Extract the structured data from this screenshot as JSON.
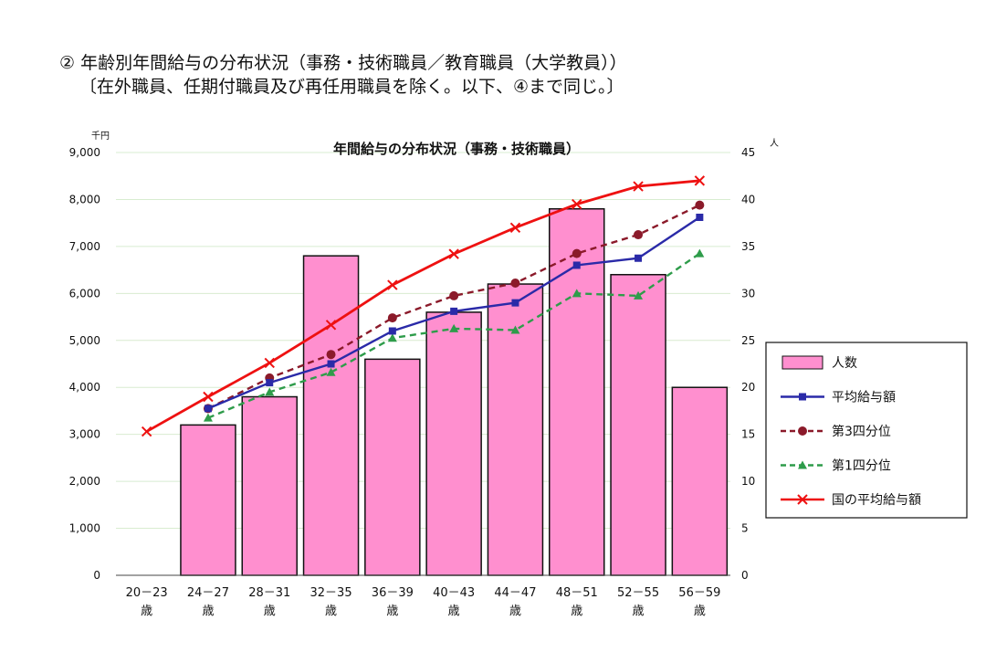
{
  "heading": {
    "line1": "② 年齢別年間給与の分布状況（事務・技術職員／教育職員（大学教員））",
    "line2": "〔在外職員、任期付職員及び再任用職員を除く。以下、④まで同じ。〕"
  },
  "chart_data": {
    "type": "bar",
    "title": "年間給与の分布状況（事務・技術職員）",
    "left_unit": "千円",
    "right_unit": "人",
    "categories": [
      "20－23",
      "24－27",
      "28－31",
      "32－35",
      "36－39",
      "40－43",
      "44－47",
      "48－51",
      "52－55",
      "56－59"
    ],
    "category_suffix": "歳",
    "y_left": {
      "min": 0,
      "max": 9000,
      "step": 1000,
      "ticks": [
        "0",
        "1,000",
        "2,000",
        "3,000",
        "4,000",
        "5,000",
        "6,000",
        "7,000",
        "8,000",
        "9,000"
      ]
    },
    "y_right": {
      "min": 0,
      "max": 45,
      "step": 5,
      "ticks": [
        "0",
        "5",
        "10",
        "15",
        "20",
        "25",
        "30",
        "35",
        "40",
        "45"
      ]
    },
    "grid": true,
    "legend_position": "right",
    "series": [
      {
        "name": "人数",
        "kind": "bar",
        "axis": "right",
        "color": "#ff8fcf",
        "values": [
          null,
          16,
          19,
          34,
          23,
          28,
          31,
          39,
          32,
          20
        ]
      },
      {
        "name": "平均給与額",
        "kind": "line",
        "axis": "left",
        "color": "#2a2aa8",
        "marker": "square",
        "dash": "solid",
        "values": [
          null,
          3550,
          4100,
          4500,
          5200,
          5620,
          5800,
          6600,
          6750,
          7620
        ]
      },
      {
        "name": "第3四分位",
        "kind": "line",
        "axis": "left",
        "color": "#8b1a2a",
        "marker": "circle",
        "dash": "dashed",
        "values": [
          null,
          3550,
          4200,
          4700,
          5480,
          5950,
          6220,
          6850,
          7250,
          7880
        ]
      },
      {
        "name": "第1四分位",
        "kind": "line",
        "axis": "left",
        "color": "#2e9c4a",
        "marker": "triangle",
        "dash": "dashed",
        "values": [
          null,
          3350,
          3900,
          4320,
          5050,
          5250,
          5220,
          6000,
          5950,
          6850
        ]
      },
      {
        "name": "国の平均給与額",
        "kind": "line",
        "axis": "left",
        "color": "#ee1111",
        "marker": "x",
        "dash": "solid",
        "values": [
          3060,
          3800,
          4520,
          5330,
          6180,
          6840,
          7400,
          7900,
          8280,
          8400
        ]
      }
    ]
  }
}
